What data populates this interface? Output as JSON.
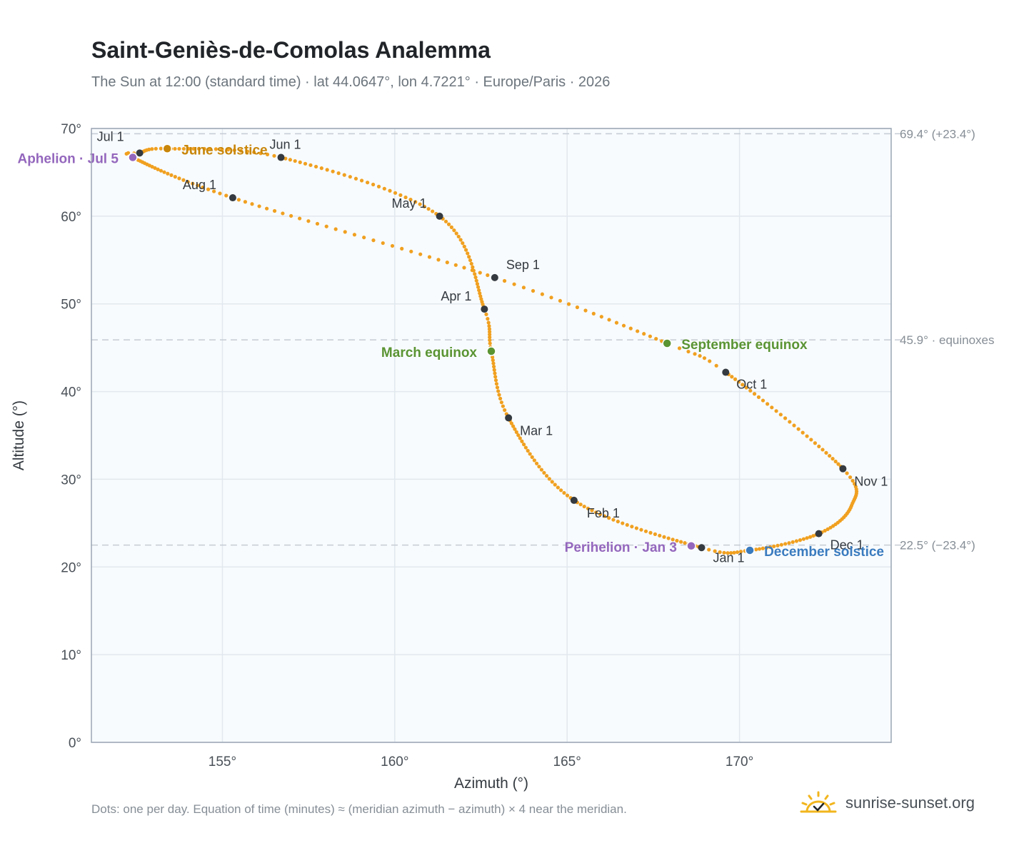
{
  "title": "Saint-Geniès-de-Comolas Analemma",
  "subtitle": "The Sun at 12:00 (standard time) · lat 44.0647°, lon 4.7221° · Europe/Paris · 2026",
  "footnote": "Dots: one per day. Equation of time (minutes) ≈ (meridian azimuth − azimuth) × 4 near the meridian.",
  "brand": {
    "name": "sunrise-sunset.org",
    "logo_icon": "sun-logo-icon"
  },
  "colors": {
    "path": "#f0a020",
    "month_marker": "#343a40",
    "solstice_june": "#c8860a",
    "solstice_december": "#3a7bbf",
    "equinox": "#5a9433",
    "apsis": "#9467bd",
    "plot_bg": "#f8fbfd",
    "grid": "#e1e8ee",
    "frame": "#9aa5b4",
    "ref_line": "#c5ccd4"
  },
  "chart_data": {
    "type": "scatter",
    "title": "Saint-Geniès-de-Comolas Analemma",
    "xlabel": "Azimuth (°)",
    "ylabel": "Altitude (°)",
    "xlim": [
      151.2,
      174.4
    ],
    "ylim": [
      0,
      70
    ],
    "xticks": [
      155,
      160,
      165,
      170
    ],
    "xtick_labels": [
      "155°",
      "160°",
      "165°",
      "170°"
    ],
    "yticks": [
      0,
      10,
      20,
      30,
      40,
      50,
      60,
      70
    ],
    "ytick_labels": [
      "0°",
      "10°",
      "20°",
      "30°",
      "40°",
      "50°",
      "60°",
      "70°"
    ],
    "grid": true,
    "reference_lines": [
      {
        "altitude": 69.4,
        "label": "69.4° (+23.4°)"
      },
      {
        "altitude": 45.9,
        "label": "45.9° · equinoxes"
      },
      {
        "altitude": 22.5,
        "label": "22.5° (−23.4°)"
      }
    ],
    "month_markers": [
      {
        "label": "Jan 1",
        "az": 168.9,
        "alt": 22.2
      },
      {
        "label": "Feb 1",
        "az": 165.2,
        "alt": 27.6
      },
      {
        "label": "Mar 1",
        "az": 163.3,
        "alt": 37.0
      },
      {
        "label": "Apr 1",
        "az": 162.6,
        "alt": 49.4
      },
      {
        "label": "May 1",
        "az": 161.3,
        "alt": 60.0
      },
      {
        "label": "Jun 1",
        "az": 156.7,
        "alt": 66.7
      },
      {
        "label": "Jul 1",
        "az": 152.6,
        "alt": 67.2
      },
      {
        "label": "Aug 1",
        "az": 155.3,
        "alt": 62.1
      },
      {
        "label": "Sep 1",
        "az": 162.9,
        "alt": 53.0
      },
      {
        "label": "Oct 1",
        "az": 169.6,
        "alt": 42.2
      },
      {
        "label": "Nov 1",
        "az": 173.0,
        "alt": 31.2
      },
      {
        "label": "Dec 1",
        "az": 172.3,
        "alt": 23.8
      }
    ],
    "events": [
      {
        "label": "June solstice",
        "az": 153.4,
        "alt": 67.7,
        "color_key": "solstice_june"
      },
      {
        "label": "December solstice",
        "az": 170.3,
        "alt": 21.9,
        "color_key": "solstice_december"
      },
      {
        "label": "March equinox",
        "az": 162.8,
        "alt": 44.6,
        "color_key": "equinox"
      },
      {
        "label": "September equinox",
        "az": 167.9,
        "alt": 45.5,
        "color_key": "equinox"
      },
      {
        "label": "Aphelion · Jul 5",
        "az": 152.4,
        "alt": 66.7,
        "color_key": "apsis"
      },
      {
        "label": "Perihelion · Jan 3",
        "az": 168.6,
        "alt": 22.4,
        "color_key": "apsis"
      }
    ],
    "daily_path_anchors": [
      {
        "day": 0,
        "az": 168.9,
        "alt": 22.2
      },
      {
        "day": 31,
        "az": 165.2,
        "alt": 27.6
      },
      {
        "day": 59,
        "az": 163.3,
        "alt": 37.0
      },
      {
        "day": 78,
        "az": 162.8,
        "alt": 44.6
      },
      {
        "day": 90,
        "az": 162.6,
        "alt": 49.4
      },
      {
        "day": 120,
        "az": 161.3,
        "alt": 60.0
      },
      {
        "day": 151,
        "az": 156.7,
        "alt": 66.7
      },
      {
        "day": 171,
        "az": 153.4,
        "alt": 67.7
      },
      {
        "day": 181,
        "az": 152.6,
        "alt": 67.2
      },
      {
        "day": 185,
        "az": 152.4,
        "alt": 66.7
      },
      {
        "day": 212,
        "az": 155.3,
        "alt": 62.1
      },
      {
        "day": 243,
        "az": 162.9,
        "alt": 53.0
      },
      {
        "day": 265,
        "az": 167.9,
        "alt": 45.5
      },
      {
        "day": 273,
        "az": 169.6,
        "alt": 42.2
      },
      {
        "day": 304,
        "az": 173.0,
        "alt": 31.2
      },
      {
        "day": 318,
        "az": 173.25,
        "alt": 27.0
      },
      {
        "day": 334,
        "az": 172.3,
        "alt": 23.8
      },
      {
        "day": 354,
        "az": 170.3,
        "alt": 21.9
      },
      {
        "day": 365,
        "az": 168.9,
        "alt": 22.2
      }
    ]
  }
}
